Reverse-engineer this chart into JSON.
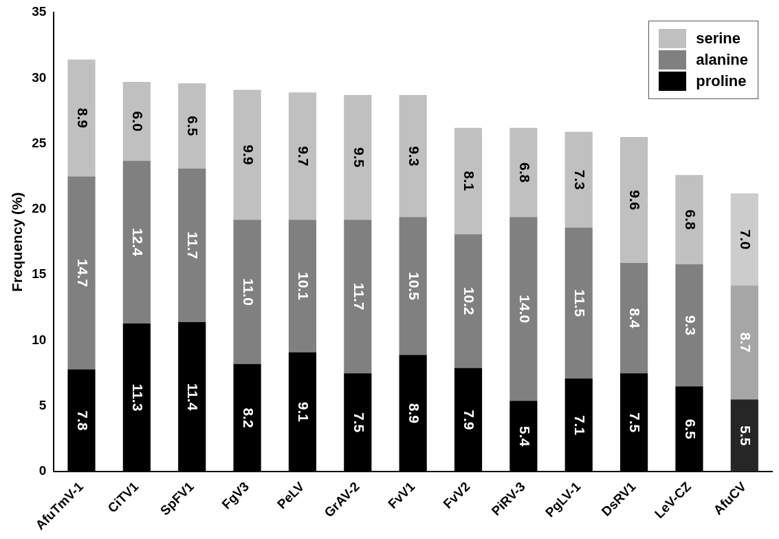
{
  "chart_data": {
    "type": "bar",
    "stacked": true,
    "ylabel": "Frequency (%)",
    "categories": [
      "AfuTmV-1",
      "CiTV1",
      "SpFV1",
      "FgV3",
      "PeLV",
      "GrAV-2",
      "FvV1",
      "FvV2",
      "PiRV-3",
      "PgLV-1",
      "DsRV1",
      "LeV-CZ",
      "AfuCV"
    ],
    "series": [
      {
        "name": "proline",
        "color": "#000000",
        "colors": [
          "#000000",
          "#000000",
          "#000000",
          "#000000",
          "#000000",
          "#000000",
          "#000000",
          "#000000",
          "#000000",
          "#000000",
          "#000000",
          "#000000",
          "#262626"
        ],
        "values": [
          7.8,
          11.3,
          11.4,
          8.2,
          9.1,
          7.5,
          8.9,
          7.9,
          5.4,
          7.1,
          7.5,
          6.5,
          5.5
        ],
        "value_labels": [
          "7.8",
          "11.3",
          "11.4",
          "8.2",
          "9.1",
          "7.5",
          "8.9",
          "7.9",
          "5.4",
          "7.1",
          "7.5",
          "6.5",
          "5.5"
        ]
      },
      {
        "name": "alanine",
        "color": "#808080",
        "colors": [
          "#808080",
          "#808080",
          "#808080",
          "#808080",
          "#808080",
          "#808080",
          "#808080",
          "#808080",
          "#808080",
          "#808080",
          "#808080",
          "#808080",
          "#a6a6a6"
        ],
        "values": [
          14.7,
          12.4,
          11.7,
          11.0,
          10.1,
          11.7,
          10.5,
          10.2,
          14.0,
          11.5,
          8.4,
          9.3,
          8.7
        ],
        "value_labels": [
          "14.7",
          "12.4",
          "11.7",
          "11.0",
          "10.1",
          "11.7",
          "10.5",
          "10.2",
          "14.0",
          "11.5",
          "8.4",
          "9.3",
          "8.7"
        ]
      },
      {
        "name": "serine",
        "color": "#c0c0c0",
        "colors": [
          "#c0c0c0",
          "#c0c0c0",
          "#c0c0c0",
          "#c0c0c0",
          "#c0c0c0",
          "#c0c0c0",
          "#c0c0c0",
          "#c0c0c0",
          "#c0c0c0",
          "#c0c0c0",
          "#c0c0c0",
          "#c0c0c0",
          "#cccccc"
        ],
        "values": [
          8.9,
          6.0,
          6.5,
          9.9,
          9.7,
          9.5,
          9.3,
          8.1,
          6.8,
          7.3,
          9.6,
          6.8,
          7.0
        ],
        "value_labels": [
          "8.9",
          "6.0",
          "6.5",
          "9.9",
          "9.7",
          "9.5",
          "9.3",
          "8.1",
          "6.8",
          "7.3",
          "9.6",
          "6.8",
          "7.0"
        ]
      }
    ],
    "ylim": [
      0,
      35
    ],
    "yticks": [
      0,
      5,
      10,
      15,
      20,
      25,
      30,
      35
    ],
    "grid": false,
    "legend": "top right"
  }
}
